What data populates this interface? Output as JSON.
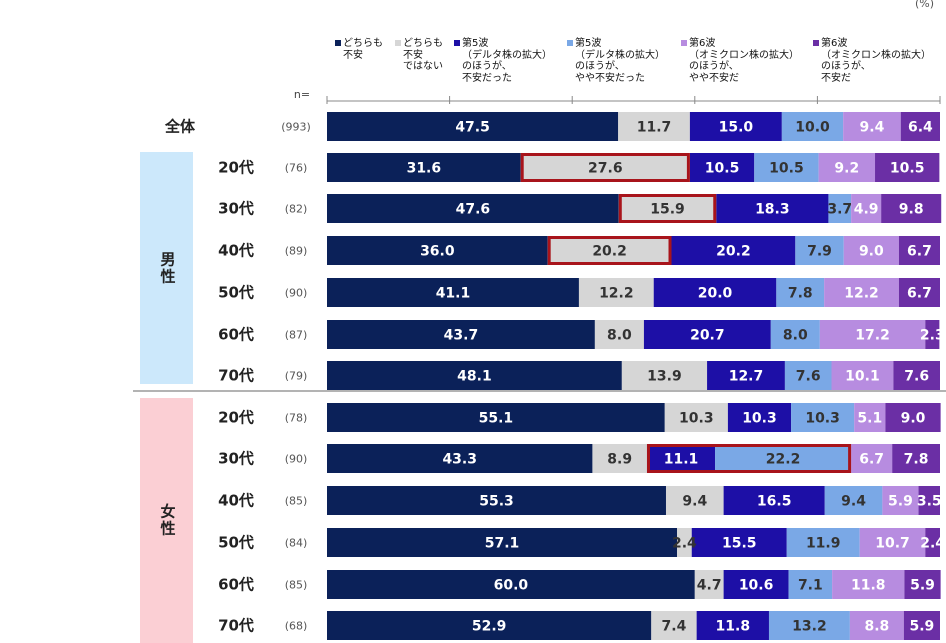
{
  "unit": "(%)",
  "n_label": "n=",
  "colors": {
    "navy": "#0b2159",
    "gray": "#d6d6d6",
    "blue": "#1d0fa6",
    "lightblue": "#7aa8e6",
    "lilac": "#b78ce0",
    "purple": "#6b2fa5",
    "male_bg": "#cce8fb",
    "female_bg": "#fbcfd4",
    "highlight": "#a8141b"
  },
  "chart_data": {
    "type": "stacked_bar_horizontal",
    "xlim": [
      0,
      100
    ],
    "legend_position": "top",
    "series": [
      {
        "name": "どちらも\n不安",
        "color_key": "navy",
        "label_color": "#ffffff"
      },
      {
        "name": "どちらも\n不安\nではない",
        "color_key": "gray",
        "label_color": "#333333"
      },
      {
        "name": "第5波\n（デルタ株の拡大）\nのほうが、\n不安だった",
        "color_key": "blue",
        "label_color": "#ffffff"
      },
      {
        "name": "第5波\n（デルタ株の拡大）\nのほうが、\nやや不安だった",
        "color_key": "lightblue",
        "label_color": "#333333"
      },
      {
        "name": "第6波\n（オミクロン株の拡大）\nのほうが、\nやや不安だ",
        "color_key": "lilac",
        "label_color": "#ffffff"
      },
      {
        "name": "第6波\n（オミクロン株の拡大）\nのほうが、\n不安だ",
        "color_key": "purple",
        "label_color": "#ffffff"
      }
    ],
    "groups": [
      {
        "name": "全体"
      },
      {
        "name": "男\n性"
      },
      {
        "name": "女\n性"
      }
    ],
    "rows": [
      {
        "group": 0,
        "label": "全体",
        "n": "(993)",
        "values": [
          47.5,
          11.7,
          15.0,
          10.0,
          9.4,
          6.4
        ],
        "highlights": []
      },
      {
        "group": 1,
        "label": "20代",
        "n": "(76)",
        "values": [
          31.6,
          27.6,
          10.5,
          10.5,
          9.2,
          10.5
        ],
        "highlights": [
          [
            1,
            1
          ]
        ]
      },
      {
        "group": 1,
        "label": "30代",
        "n": "(82)",
        "values": [
          47.6,
          15.9,
          18.3,
          3.7,
          4.9,
          9.8
        ],
        "highlights": [
          [
            1,
            1
          ]
        ]
      },
      {
        "group": 1,
        "label": "40代",
        "n": "(89)",
        "values": [
          36.0,
          20.2,
          20.2,
          7.9,
          9.0,
          6.7
        ],
        "highlights": [
          [
            1,
            1
          ]
        ]
      },
      {
        "group": 1,
        "label": "50代",
        "n": "(90)",
        "values": [
          41.1,
          12.2,
          20.0,
          7.8,
          12.2,
          6.7
        ],
        "highlights": []
      },
      {
        "group": 1,
        "label": "60代",
        "n": "(87)",
        "values": [
          43.7,
          8.0,
          20.7,
          8.0,
          17.2,
          2.3
        ],
        "highlights": []
      },
      {
        "group": 1,
        "label": "70代",
        "n": "(79)",
        "values": [
          48.1,
          13.9,
          12.7,
          7.6,
          10.1,
          7.6
        ],
        "highlights": []
      },
      {
        "group": 2,
        "label": "20代",
        "n": "(78)",
        "values": [
          55.1,
          10.3,
          10.3,
          10.3,
          5.1,
          9.0
        ],
        "highlights": []
      },
      {
        "group": 2,
        "label": "30代",
        "n": "(90)",
        "values": [
          43.3,
          8.9,
          11.1,
          22.2,
          6.7,
          7.8
        ],
        "highlights": [
          [
            2,
            3
          ]
        ]
      },
      {
        "group": 2,
        "label": "40代",
        "n": "(85)",
        "values": [
          55.3,
          9.4,
          16.5,
          9.4,
          5.9,
          3.5
        ],
        "highlights": []
      },
      {
        "group": 2,
        "label": "50代",
        "n": "(84)",
        "values": [
          57.1,
          2.4,
          15.5,
          11.9,
          10.7,
          2.4
        ],
        "highlights": []
      },
      {
        "group": 2,
        "label": "60代",
        "n": "(85)",
        "values": [
          60.0,
          4.7,
          10.6,
          7.1,
          11.8,
          5.9
        ],
        "highlights": []
      },
      {
        "group": 2,
        "label": "70代",
        "n": "(68)",
        "values": [
          52.9,
          7.4,
          11.8,
          13.2,
          8.8,
          5.9
        ],
        "highlights": []
      }
    ]
  }
}
